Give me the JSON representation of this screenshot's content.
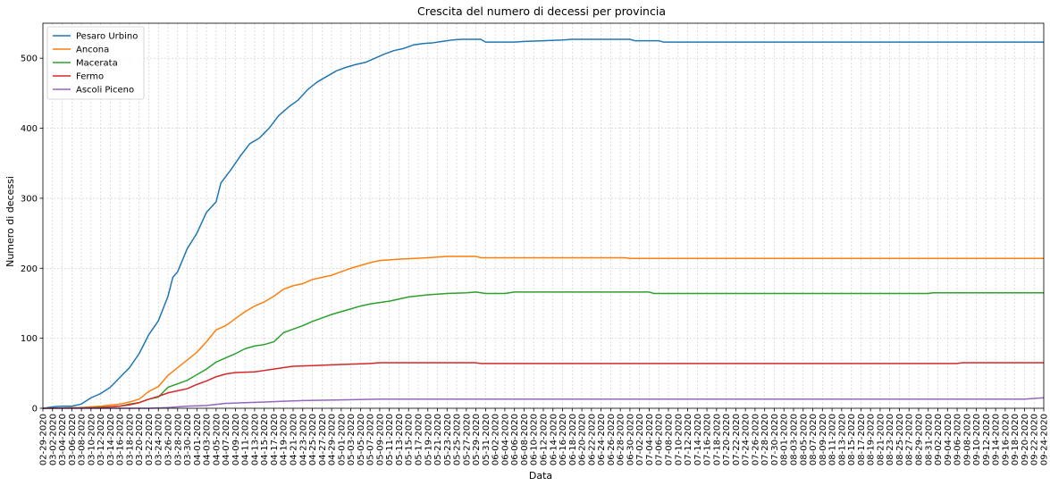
{
  "chart_data": {
    "type": "line",
    "title": "Crescita del numero di decessi per provincia",
    "xlabel": "Data",
    "ylabel": "Numero di decessi",
    "date_start": "2020-02-29",
    "date_end": "2020-09-24",
    "x_tick_every_days": 2,
    "ylim": [
      0,
      550
    ],
    "yticks": [
      0,
      100,
      200,
      300,
      400,
      500
    ],
    "grid": true,
    "legend_position": "top-left",
    "series": [
      {
        "name": "Pesaro Urbino",
        "color": "#1f77b4",
        "points": [
          [
            "2020-02-29",
            0
          ],
          [
            "2020-03-02",
            2
          ],
          [
            "2020-03-04",
            3
          ],
          [
            "2020-03-06",
            3
          ],
          [
            "2020-03-08",
            6
          ],
          [
            "2020-03-10",
            15
          ],
          [
            "2020-03-12",
            21
          ],
          [
            "2020-03-14",
            30
          ],
          [
            "2020-03-16",
            44
          ],
          [
            "2020-03-18",
            58
          ],
          [
            "2020-03-20",
            78
          ],
          [
            "2020-03-22",
            105
          ],
          [
            "2020-03-24",
            125
          ],
          [
            "2020-03-26",
            160
          ],
          [
            "2020-03-27",
            187
          ],
          [
            "2020-03-28",
            195
          ],
          [
            "2020-03-30",
            228
          ],
          [
            "2020-04-01",
            250
          ],
          [
            "2020-04-03",
            280
          ],
          [
            "2020-04-05",
            295
          ],
          [
            "2020-04-06",
            322
          ],
          [
            "2020-04-08",
            340
          ],
          [
            "2020-04-10",
            360
          ],
          [
            "2020-04-12",
            378
          ],
          [
            "2020-04-14",
            386
          ],
          [
            "2020-04-16",
            400
          ],
          [
            "2020-04-18",
            418
          ],
          [
            "2020-04-20",
            430
          ],
          [
            "2020-04-22",
            440
          ],
          [
            "2020-04-24",
            455
          ],
          [
            "2020-04-26",
            466
          ],
          [
            "2020-04-28",
            474
          ],
          [
            "2020-04-30",
            482
          ],
          [
            "2020-05-02",
            487
          ],
          [
            "2020-05-04",
            491
          ],
          [
            "2020-05-06",
            494
          ],
          [
            "2020-05-08",
            500
          ],
          [
            "2020-05-10",
            506
          ],
          [
            "2020-05-12",
            511
          ],
          [
            "2020-05-14",
            514
          ],
          [
            "2020-05-16",
            519
          ],
          [
            "2020-05-18",
            521
          ],
          [
            "2020-05-20",
            522
          ],
          [
            "2020-05-22",
            524
          ],
          [
            "2020-05-24",
            526
          ],
          [
            "2020-05-26",
            527
          ],
          [
            "2020-05-30",
            527
          ],
          [
            "2020-05-31",
            523
          ],
          [
            "2020-06-06",
            523
          ],
          [
            "2020-06-08",
            524
          ],
          [
            "2020-06-12",
            525
          ],
          [
            "2020-06-16",
            526
          ],
          [
            "2020-06-18",
            527
          ],
          [
            "2020-06-30",
            527
          ],
          [
            "2020-07-01",
            525
          ],
          [
            "2020-07-06",
            525
          ],
          [
            "2020-07-07",
            523
          ],
          [
            "2020-09-24",
            523
          ]
        ]
      },
      {
        "name": "Ancona",
        "color": "#ff7f0e",
        "points": [
          [
            "2020-02-29",
            0
          ],
          [
            "2020-03-08",
            1
          ],
          [
            "2020-03-12",
            3
          ],
          [
            "2020-03-16",
            6
          ],
          [
            "2020-03-18",
            9
          ],
          [
            "2020-03-20",
            13
          ],
          [
            "2020-03-22",
            24
          ],
          [
            "2020-03-24",
            31
          ],
          [
            "2020-03-26",
            47
          ],
          [
            "2020-03-28",
            58
          ],
          [
            "2020-03-30",
            69
          ],
          [
            "2020-04-01",
            80
          ],
          [
            "2020-04-03",
            95
          ],
          [
            "2020-04-05",
            112
          ],
          [
            "2020-04-07",
            118
          ],
          [
            "2020-04-09",
            128
          ],
          [
            "2020-04-11",
            138
          ],
          [
            "2020-04-13",
            146
          ],
          [
            "2020-04-15",
            152
          ],
          [
            "2020-04-17",
            160
          ],
          [
            "2020-04-19",
            170
          ],
          [
            "2020-04-21",
            175
          ],
          [
            "2020-04-23",
            178
          ],
          [
            "2020-04-25",
            184
          ],
          [
            "2020-04-27",
            187
          ],
          [
            "2020-04-29",
            190
          ],
          [
            "2020-05-01",
            195
          ],
          [
            "2020-05-03",
            200
          ],
          [
            "2020-05-05",
            204
          ],
          [
            "2020-05-07",
            208
          ],
          [
            "2020-05-09",
            211
          ],
          [
            "2020-05-13",
            213
          ],
          [
            "2020-05-19",
            215
          ],
          [
            "2020-05-23",
            217
          ],
          [
            "2020-05-29",
            217
          ],
          [
            "2020-05-30",
            215
          ],
          [
            "2020-06-29",
            215
          ],
          [
            "2020-06-30",
            214
          ],
          [
            "2020-09-24",
            214
          ]
        ]
      },
      {
        "name": "Macerata",
        "color": "#2ca02c",
        "points": [
          [
            "2020-02-29",
            0
          ],
          [
            "2020-03-10",
            1
          ],
          [
            "2020-03-14",
            2
          ],
          [
            "2020-03-16",
            3
          ],
          [
            "2020-03-18",
            6
          ],
          [
            "2020-03-20",
            8
          ],
          [
            "2020-03-22",
            13
          ],
          [
            "2020-03-24",
            16
          ],
          [
            "2020-03-26",
            30
          ],
          [
            "2020-03-28",
            35
          ],
          [
            "2020-03-30",
            40
          ],
          [
            "2020-04-01",
            48
          ],
          [
            "2020-04-03",
            56
          ],
          [
            "2020-04-05",
            66
          ],
          [
            "2020-04-07",
            72
          ],
          [
            "2020-04-09",
            78
          ],
          [
            "2020-04-11",
            85
          ],
          [
            "2020-04-13",
            89
          ],
          [
            "2020-04-15",
            91
          ],
          [
            "2020-04-17",
            95
          ],
          [
            "2020-04-19",
            108
          ],
          [
            "2020-04-21",
            113
          ],
          [
            "2020-04-23",
            118
          ],
          [
            "2020-04-25",
            124
          ],
          [
            "2020-04-27",
            129
          ],
          [
            "2020-04-29",
            134
          ],
          [
            "2020-05-01",
            138
          ],
          [
            "2020-05-03",
            142
          ],
          [
            "2020-05-05",
            146
          ],
          [
            "2020-05-07",
            149
          ],
          [
            "2020-05-09",
            151
          ],
          [
            "2020-05-11",
            153
          ],
          [
            "2020-05-13",
            156
          ],
          [
            "2020-05-15",
            159
          ],
          [
            "2020-05-19",
            162
          ],
          [
            "2020-05-23",
            164
          ],
          [
            "2020-05-27",
            165
          ],
          [
            "2020-05-29",
            166
          ],
          [
            "2020-05-31",
            164
          ],
          [
            "2020-06-04",
            164
          ],
          [
            "2020-06-06",
            166
          ],
          [
            "2020-07-04",
            166
          ],
          [
            "2020-07-05",
            164
          ],
          [
            "2020-08-31",
            164
          ],
          [
            "2020-09-01",
            165
          ],
          [
            "2020-09-24",
            165
          ]
        ]
      },
      {
        "name": "Fermo",
        "color": "#d62728",
        "points": [
          [
            "2020-02-29",
            0
          ],
          [
            "2020-03-12",
            1
          ],
          [
            "2020-03-16",
            3
          ],
          [
            "2020-03-18",
            5
          ],
          [
            "2020-03-20",
            8
          ],
          [
            "2020-03-22",
            13
          ],
          [
            "2020-03-24",
            17
          ],
          [
            "2020-03-26",
            22
          ],
          [
            "2020-03-28",
            25
          ],
          [
            "2020-03-30",
            28
          ],
          [
            "2020-04-01",
            34
          ],
          [
            "2020-04-03",
            39
          ],
          [
            "2020-04-05",
            45
          ],
          [
            "2020-04-07",
            49
          ],
          [
            "2020-04-09",
            51
          ],
          [
            "2020-04-13",
            52
          ],
          [
            "2020-04-15",
            54
          ],
          [
            "2020-04-17",
            56
          ],
          [
            "2020-04-19",
            58
          ],
          [
            "2020-04-21",
            60
          ],
          [
            "2020-04-25",
            61
          ],
          [
            "2020-04-29",
            62
          ],
          [
            "2020-05-03",
            63
          ],
          [
            "2020-05-07",
            64
          ],
          [
            "2020-05-09",
            65
          ],
          [
            "2020-05-29",
            65
          ],
          [
            "2020-05-30",
            64
          ],
          [
            "2020-09-06",
            64
          ],
          [
            "2020-09-07",
            65
          ],
          [
            "2020-09-24",
            65
          ]
        ]
      },
      {
        "name": "Ascoli Piceno",
        "color": "#9467bd",
        "points": [
          [
            "2020-02-29",
            0
          ],
          [
            "2020-03-22",
            0
          ],
          [
            "2020-03-26",
            1
          ],
          [
            "2020-03-30",
            3
          ],
          [
            "2020-04-03",
            4
          ],
          [
            "2020-04-07",
            7
          ],
          [
            "2020-04-11",
            8
          ],
          [
            "2020-04-15",
            9
          ],
          [
            "2020-04-19",
            10
          ],
          [
            "2020-04-23",
            11
          ],
          [
            "2020-05-01",
            12
          ],
          [
            "2020-05-09",
            13
          ],
          [
            "2020-09-20",
            13
          ],
          [
            "2020-09-22",
            14
          ],
          [
            "2020-09-24",
            15
          ]
        ]
      }
    ]
  }
}
